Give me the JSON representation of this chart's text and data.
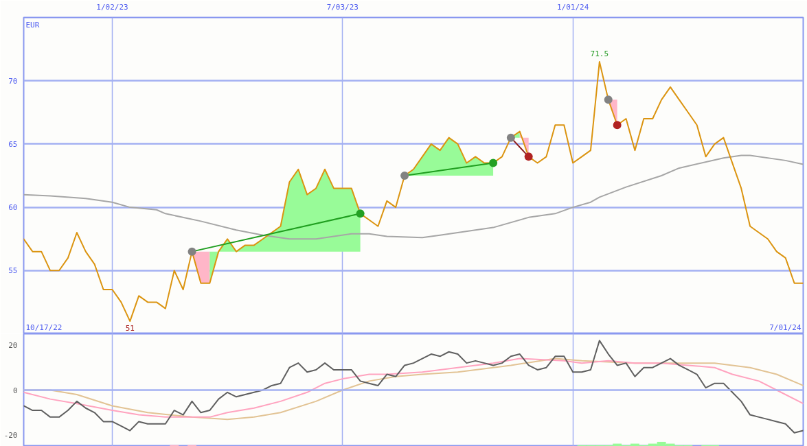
{
  "chart_data": [
    {
      "type": "line",
      "xlim": [
        "2022-10-24",
        "2024-07-01"
      ],
      "xticks": [
        {
          "value": "2023-01-02",
          "label": "1/02/23"
        },
        {
          "value": "2023-07-03",
          "label": "7/03/23"
        },
        {
          "value": "2024-01-01",
          "label": "1/01/24"
        }
      ],
      "ylim": [
        50,
        75
      ],
      "yticks": [
        55,
        60,
        65,
        70
      ],
      "ylabel": "EUR",
      "grid": true,
      "line_style": "solid",
      "marker": "none",
      "annotations": [
        "10/17/22",
        "7/01/24",
        {
          "text": "71.5",
          "x": "2024-01-22",
          "y": 71.5
        },
        {
          "text": "51",
          "x": "2023-01-16",
          "y": 51
        }
      ],
      "x": [
        "2022-10-24",
        "2022-10-31",
        "2022-11-07",
        "2022-11-14",
        "2022-11-21",
        "2022-11-28",
        "2022-12-05",
        "2022-12-12",
        "2022-12-19",
        "2022-12-26",
        "2023-01-02",
        "2023-01-09",
        "2023-01-16",
        "2023-01-23",
        "2023-01-30",
        "2023-02-06",
        "2023-02-13",
        "2023-02-20",
        "2023-02-27",
        "2023-03-06",
        "2023-03-13",
        "2023-03-20",
        "2023-03-27",
        "2023-04-03",
        "2023-04-10",
        "2023-04-17",
        "2023-04-24",
        "2023-05-01",
        "2023-05-08",
        "2023-05-15",
        "2023-05-22",
        "2023-05-29",
        "2023-06-05",
        "2023-06-12",
        "2023-06-19",
        "2023-06-26",
        "2023-07-03",
        "2023-07-10",
        "2023-07-17",
        "2023-07-24",
        "2023-07-31",
        "2023-08-07",
        "2023-08-14",
        "2023-08-21",
        "2023-08-28",
        "2023-09-04",
        "2023-09-11",
        "2023-09-18",
        "2023-09-25",
        "2023-10-02",
        "2023-10-09",
        "2023-10-16",
        "2023-10-23",
        "2023-10-30",
        "2023-11-06",
        "2023-11-13",
        "2023-11-20",
        "2023-11-27",
        "2023-12-04",
        "2023-12-11",
        "2023-12-18",
        "2023-12-25",
        "2024-01-01",
        "2024-01-08",
        "2024-01-15",
        "2024-01-22",
        "2024-01-29",
        "2024-02-05",
        "2024-02-12",
        "2024-02-19",
        "2024-02-26",
        "2024-03-04",
        "2024-03-11",
        "2024-03-18",
        "2024-03-25",
        "2024-04-01",
        "2024-04-08",
        "2024-04-15",
        "2024-04-22",
        "2024-04-29",
        "2024-05-06",
        "2024-05-13",
        "2024-05-20",
        "2024-05-27",
        "2024-06-03",
        "2024-06-10",
        "2024-06-17",
        "2024-06-24",
        "2024-07-01"
      ],
      "series": [
        {
          "type": "area",
          "color": "#ffb6c8",
          "x": [
            "2023-03-06",
            "2023-03-13",
            "2023-03-20"
          ],
          "values": [
            null,
            null,
            null
          ],
          "lower": [
            56.5,
            56.5,
            56.5
          ],
          "upper": [
            56.5,
            54.0,
            54.0
          ]
        },
        {
          "type": "area",
          "color": "#98fb98",
          "x": [
            "2023-03-20",
            "2023-03-27",
            "2023-04-03",
            "2023-04-10",
            "2023-04-17",
            "2023-04-24",
            "2023-05-01",
            "2023-05-08",
            "2023-05-15",
            "2023-05-22",
            "2023-05-29",
            "2023-06-05",
            "2023-06-12",
            "2023-06-19",
            "2023-06-26",
            "2023-07-03",
            "2023-07-10",
            "2023-07-17"
          ],
          "values": [
            null,
            null,
            null,
            null,
            null,
            null,
            null,
            null,
            null,
            null,
            null,
            null,
            null,
            null,
            null,
            null,
            null,
            null
          ],
          "lower": [
            56.5,
            56.5,
            56.5,
            56.5,
            56.5,
            56.5,
            56.5,
            56.5,
            56.5,
            56.5,
            56.5,
            56.5,
            56.5,
            56.5,
            56.5,
            56.5,
            56.5,
            56.5
          ],
          "upper": [
            54.0,
            56.5,
            57.5,
            56.5,
            57.0,
            57.0,
            57.5,
            58.0,
            58.5,
            62.0,
            63.0,
            61.0,
            61.5,
            63.0,
            61.5,
            61.5,
            61.5,
            59.5
          ]
        },
        {
          "type": "area",
          "color": "#98fb98",
          "x": [
            "2023-08-21",
            "2023-08-28",
            "2023-09-04",
            "2023-09-11",
            "2023-09-18",
            "2023-09-25",
            "2023-10-02",
            "2023-10-09",
            "2023-10-16",
            "2023-10-23",
            "2023-10-30"
          ],
          "values": [
            null,
            null,
            null,
            null,
            null,
            null,
            null,
            null,
            null,
            null,
            null
          ],
          "lower": [
            62.5,
            62.5,
            62.5,
            62.5,
            62.5,
            62.5,
            62.5,
            62.5,
            62.5,
            62.5,
            62.5
          ],
          "upper": [
            62.5,
            63.0,
            64.0,
            65.0,
            64.5,
            65.5,
            65.0,
            63.5,
            64.0,
            63.5,
            63.5
          ]
        },
        {
          "type": "area",
          "color": "#98fb98",
          "x": [
            "2023-11-13",
            "2023-11-20"
          ],
          "values": [
            null,
            null
          ],
          "lower": [
            65.5,
            65.5
          ],
          "upper": [
            65.5,
            66.0
          ]
        },
        {
          "type": "area",
          "color": "#ffb6c8",
          "x": [
            "2023-11-20",
            "2023-11-27"
          ],
          "values": [
            null,
            null
          ],
          "lower": [
            65.5,
            65.5
          ],
          "upper": [
            66.0,
            64.0
          ]
        },
        {
          "type": "area",
          "color": "#ffb6c8",
          "x": [
            "2024-01-29",
            "2024-02-05"
          ],
          "values": [
            null,
            null
          ],
          "lower": [
            68.5,
            68.5
          ],
          "upper": [
            68.5,
            66.5
          ]
        },
        {
          "type": "line",
          "color": "#a6a6a6",
          "x": [
            "2022-10-24",
            "2022-11-14",
            "2022-12-12",
            "2023-01-02",
            "2023-01-16",
            "2023-02-06",
            "2023-02-13",
            "2023-03-13",
            "2023-04-10",
            "2023-05-01",
            "2023-05-22",
            "2023-06-12",
            "2023-07-10",
            "2023-07-24",
            "2023-08-07",
            "2023-09-04",
            "2023-09-18",
            "2023-10-02",
            "2023-10-30",
            "2023-11-27",
            "2023-12-18",
            "2024-01-01",
            "2024-01-15",
            "2024-01-22",
            "2024-02-12",
            "2024-03-11",
            "2024-03-25",
            "2024-04-29",
            "2024-05-13",
            "2024-05-20",
            "2024-06-17",
            "2024-07-01"
          ],
          "values": [
            61.0,
            60.9,
            60.7,
            60.4,
            60.0,
            59.8,
            59.5,
            58.9,
            58.2,
            57.8,
            57.5,
            57.5,
            57.9,
            57.9,
            57.7,
            57.6,
            57.8,
            58.0,
            58.4,
            59.2,
            59.5,
            60.0,
            60.4,
            60.8,
            61.6,
            62.5,
            63.1,
            63.9,
            64.1,
            64.1,
            63.7,
            63.4
          ]
        },
        {
          "type": "line",
          "color": "#db9410",
          "values": [
            57.5,
            56.5,
            56.5,
            55.0,
            55.0,
            56.0,
            58.0,
            56.5,
            55.5,
            53.5,
            53.5,
            52.5,
            51.0,
            53.0,
            52.5,
            52.5,
            52.0,
            55.0,
            53.5,
            56.5,
            54.0,
            54.0,
            56.5,
            57.5,
            56.5,
            57.0,
            57.0,
            57.5,
            58.0,
            58.5,
            62.0,
            63.0,
            61.0,
            61.5,
            63.0,
            61.5,
            61.5,
            61.5,
            59.5,
            59.0,
            58.5,
            60.5,
            60.0,
            62.5,
            63.0,
            64.0,
            65.0,
            64.5,
            65.5,
            65.0,
            63.5,
            64.0,
            63.5,
            63.5,
            64.0,
            65.5,
            66.0,
            64.0,
            63.5,
            64.0,
            66.5,
            66.5,
            63.5,
            64.0,
            64.5,
            71.5,
            68.5,
            66.5,
            67.0,
            64.5,
            67.0,
            67.0,
            68.5,
            69.5,
            68.5,
            67.5,
            66.5,
            64.0,
            65.0,
            65.5,
            63.5,
            61.5,
            58.5,
            58.0,
            57.5,
            56.5,
            56.0,
            54.0,
            54.0
          ]
        },
        {
          "type": "line",
          "color": "#1f9e1f",
          "x": [
            "2023-03-06",
            "2023-07-17",
            "2023-07-31",
            "2023-08-21",
            "2023-10-30"
          ],
          "values": [
            56.5,
            59.5,
            null,
            62.5,
            63.5
          ]
        },
        {
          "type": "line",
          "color": "#8b1c1c",
          "x": [
            "2023-11-13",
            "2023-11-27"
          ],
          "values": [
            65.5,
            64.0
          ]
        },
        {
          "type": "scatter",
          "marker": "circle",
          "color": "#828282",
          "x": [
            "2023-03-06",
            "2023-08-21",
            "2023-11-13",
            "2024-01-29"
          ],
          "values": [
            56.5,
            62.5,
            65.5,
            68.5
          ]
        },
        {
          "type": "scatter",
          "marker": "circle",
          "color": "#24a024",
          "x": [
            "2023-07-17",
            "2023-10-30"
          ],
          "values": [
            59.5,
            63.5
          ]
        },
        {
          "type": "scatter",
          "marker": "circle",
          "color": "#b02222",
          "x": [
            "2023-11-27",
            "2024-02-05"
          ],
          "values": [
            64.0,
            66.5
          ]
        }
      ]
    },
    {
      "type": "line",
      "xlim": [
        "2022-10-24",
        "2024-07-01"
      ],
      "xticks": [
        {
          "value": "2023-01-02",
          "label": null
        },
        {
          "value": "2023-07-03",
          "label": null
        },
        {
          "value": "2024-01-01",
          "label": null
        }
      ],
      "ylim": [
        -25,
        25
      ],
      "yticks": [
        -20,
        0,
        20
      ],
      "grid": "x",
      "tick_labels": "y",
      "line_style": "solid",
      "ref_lines": [
        {
          "axis": "y",
          "value": 0,
          "color": "#a3b0f2"
        }
      ],
      "x": [
        "2022-10-24",
        "2022-10-31",
        "2022-11-07",
        "2022-11-14",
        "2022-11-21",
        "2022-11-28",
        "2022-12-05",
        "2022-12-12",
        "2022-12-19",
        "2022-12-26",
        "2023-01-02",
        "2023-01-09",
        "2023-01-16",
        "2023-01-23",
        "2023-01-30",
        "2023-02-06",
        "2023-02-13",
        "2023-02-20",
        "2023-02-27",
        "2023-03-06",
        "2023-03-13",
        "2023-03-20",
        "2023-03-27",
        "2023-04-03",
        "2023-04-10",
        "2023-04-17",
        "2023-04-24",
        "2023-05-01",
        "2023-05-08",
        "2023-05-15",
        "2023-05-22",
        "2023-05-29",
        "2023-06-05",
        "2023-06-12",
        "2023-06-19",
        "2023-06-26",
        "2023-07-03",
        "2023-07-10",
        "2023-07-17",
        "2023-07-24",
        "2023-07-31",
        "2023-08-07",
        "2023-08-14",
        "2023-08-21",
        "2023-08-28",
        "2023-09-04",
        "2023-09-11",
        "2023-09-18",
        "2023-09-25",
        "2023-10-02",
        "2023-10-09",
        "2023-10-16",
        "2023-10-23",
        "2023-10-30",
        "2023-11-06",
        "2023-11-13",
        "2023-11-20",
        "2023-11-27",
        "2023-12-04",
        "2023-12-11",
        "2023-12-18",
        "2023-12-25",
        "2024-01-01",
        "2024-01-08",
        "2024-01-15",
        "2024-01-22",
        "2024-01-29",
        "2024-02-05",
        "2024-02-12",
        "2024-02-19",
        "2024-02-26",
        "2024-03-04",
        "2024-03-11",
        "2024-03-18",
        "2024-03-25",
        "2024-04-01",
        "2024-04-08",
        "2024-04-15",
        "2024-04-22",
        "2024-04-29",
        "2024-05-06",
        "2024-05-13",
        "2024-05-20",
        "2024-05-27",
        "2024-06-03",
        "2024-06-10",
        "2024-06-17",
        "2024-06-24",
        "2024-07-01"
      ],
      "series": [
        {
          "type": "bar",
          "values": [
            null,
            null,
            null,
            null,
            null,
            null,
            null,
            null,
            null,
            null,
            null,
            null,
            null,
            null,
            null,
            null,
            null,
            0.6,
            null,
            0.6,
            null,
            null,
            null,
            null,
            null,
            null,
            null,
            null,
            null,
            null,
            null,
            null,
            null,
            null,
            null,
            null,
            null,
            null,
            null,
            null,
            null,
            null,
            null,
            null,
            null,
            null,
            null,
            null,
            null,
            null,
            null,
            null,
            null,
            null,
            null,
            null,
            null,
            null,
            null,
            null,
            null,
            null,
            null,
            0.5,
            0.5,
            0.5,
            0.5,
            1.2,
            0.5,
            1.2,
            0.5,
            1.2,
            2,
            1.2,
            0.5,
            0.5,
            null,
            0.5,
            0.5,
            null,
            null,
            null,
            null,
            null,
            null,
            null,
            null,
            null,
            null
          ],
          "base": [
            null,
            null,
            null,
            null,
            null,
            null,
            null,
            null,
            null,
            null,
            null,
            null,
            null,
            null,
            null,
            null,
            null,
            -25,
            null,
            -25,
            null,
            null,
            null,
            null,
            null,
            null,
            null,
            null,
            null,
            null,
            null,
            null,
            null,
            null,
            null,
            null,
            null,
            null,
            null,
            null,
            null,
            null,
            null,
            null,
            null,
            null,
            null,
            null,
            null,
            null,
            null,
            null,
            null,
            null,
            null,
            null,
            null,
            null,
            null,
            null,
            null,
            null,
            null,
            -25,
            -25,
            -25,
            -25,
            -25,
            -25,
            -25,
            -25,
            -25,
            -25,
            -25,
            -25,
            -25,
            null,
            -25,
            -25,
            null,
            null,
            null,
            null,
            null,
            null,
            null,
            null,
            null,
            null
          ],
          "colors": [
            null,
            null,
            null,
            null,
            null,
            null,
            null,
            null,
            null,
            null,
            null,
            null,
            null,
            null,
            null,
            null,
            null,
            "#ffb6c8",
            null,
            "#ffb6c8",
            null,
            null,
            null,
            null,
            null,
            null,
            null,
            null,
            null,
            null,
            null,
            null,
            null,
            null,
            null,
            null,
            null,
            null,
            null,
            null,
            null,
            null,
            null,
            null,
            null,
            null,
            null,
            null,
            null,
            null,
            null,
            null,
            null,
            null,
            null,
            null,
            null,
            null,
            null,
            null,
            null,
            null,
            null,
            "#98fb98",
            "#98fb98",
            "#98fb98",
            "#98fb98",
            "#98fb98",
            "#98fb98",
            "#98fb98",
            "#98fb98",
            "#98fb98",
            "#98fb98",
            "#98fb98",
            "#98fb98",
            "#98fb98",
            null,
            "#98fb98",
            "#98fb98",
            null,
            null,
            null,
            null,
            null,
            null,
            null,
            null,
            null,
            null
          ]
        },
        {
          "color": "#e2c394",
          "x": [
            "2022-10-24",
            "2022-11-14",
            "2022-12-05",
            "2023-01-02",
            "2023-01-30",
            "2023-03-06",
            "2023-04-03",
            "2023-04-24",
            "2023-05-15",
            "2023-06-12",
            "2023-07-03",
            "2023-07-24",
            "2023-08-14",
            "2023-09-04",
            "2023-10-02",
            "2023-11-13",
            "2023-12-18",
            "2024-01-08",
            "2024-02-19",
            "2024-03-18",
            "2024-04-22",
            "2024-05-20",
            "2024-06-10",
            "2024-07-01"
          ],
          "values": [
            0,
            0,
            -2,
            -7,
            -10,
            -12,
            -13,
            -12,
            -10,
            -5,
            0,
            4,
            6,
            7,
            8,
            11,
            14,
            13,
            12,
            12,
            12,
            10,
            7,
            2
          ]
        },
        {
          "color": "#ffa3bf",
          "x": [
            "2022-10-24",
            "2022-11-14",
            "2022-12-05",
            "2023-01-02",
            "2023-01-23",
            "2023-02-13",
            "2023-02-27",
            "2023-03-20",
            "2023-04-03",
            "2023-04-24",
            "2023-05-15",
            "2023-06-05",
            "2023-06-19",
            "2023-07-03",
            "2023-07-24",
            "2023-08-07",
            "2023-09-04",
            "2023-10-02",
            "2023-10-30",
            "2023-11-20",
            "2023-12-25",
            "2024-01-08",
            "2024-01-29",
            "2024-02-19",
            "2024-03-11",
            "2024-04-01",
            "2024-04-22",
            "2024-05-06",
            "2024-05-27",
            "2024-06-10",
            "2024-07-01"
          ],
          "values": [
            -1,
            -4,
            -6,
            -9,
            -11,
            -12,
            -12,
            -12,
            -10,
            -8,
            -5,
            -1,
            3,
            5,
            7,
            7,
            8,
            10,
            12,
            14,
            13,
            12,
            13,
            12,
            12,
            11,
            10,
            7,
            4,
            0,
            -6
          ]
        },
        {
          "color": "#5f5f5f",
          "values": [
            -7,
            -9,
            -9,
            -12,
            -12,
            -9,
            -5,
            -8,
            -10,
            -14,
            -14,
            -16,
            -18,
            -14,
            -15,
            -15,
            -15,
            -9,
            -11,
            -5,
            -10,
            -9,
            -4,
            -1,
            -3,
            -2,
            -1,
            0,
            2,
            3,
            10,
            12,
            8,
            9,
            12,
            9,
            9,
            9,
            4,
            3,
            2,
            7,
            6,
            11,
            12,
            14,
            16,
            15,
            17,
            16,
            12,
            13,
            12,
            11,
            12,
            15,
            16,
            11,
            9,
            10,
            15,
            15,
            8,
            8,
            9,
            22,
            16,
            11,
            12,
            6,
            10,
            10,
            12,
            14,
            11,
            9,
            7,
            1,
            3,
            3,
            -1,
            -5,
            -11,
            -12,
            -13,
            -14,
            -15,
            -19,
            -18
          ]
        }
      ]
    }
  ]
}
